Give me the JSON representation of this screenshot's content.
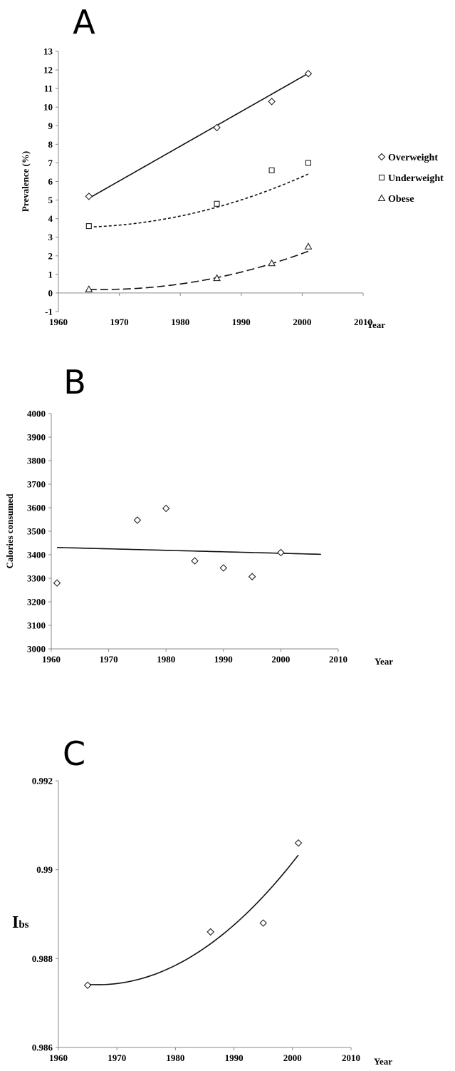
{
  "chart_data": [
    {
      "panel": "A",
      "type": "scatter",
      "title": "",
      "xlabel": "Year",
      "ylabel": "Prevalence (%)",
      "xlim": [
        1960,
        2010
      ],
      "ylim": [
        -1,
        13
      ],
      "xticks": [
        1960,
        1970,
        1980,
        1990,
        2000,
        2010
      ],
      "yticks": [
        -1,
        0,
        1,
        2,
        3,
        4,
        5,
        6,
        7,
        8,
        9,
        10,
        11,
        12,
        13
      ],
      "legend": "right",
      "series": [
        {
          "name": "Overweight",
          "marker": "diamond",
          "points": [
            [
              1965,
              5.2
            ],
            [
              1986,
              8.9
            ],
            [
              1995,
              10.3
            ],
            [
              2001,
              11.8
            ]
          ],
          "fit": {
            "style": "solid",
            "from": 1965,
            "to": 2001,
            "coef": [
              -361.71,
              0.18667,
              0
            ]
          }
        },
        {
          "name": "Underweight",
          "marker": "square",
          "points": [
            [
              1965,
              3.6
            ],
            [
              1986,
              4.8
            ],
            [
              1995,
              6.6
            ],
            [
              2001,
              7.0
            ]
          ],
          "fit": {
            "style": "short-dash",
            "from": 1965,
            "to": 2001,
            "coef": [
              3.55,
              0.0108,
              0.0019
            ]
          }
        },
        {
          "name": "Obese",
          "marker": "triangle",
          "points": [
            [
              1965,
              0.2
            ],
            [
              1986,
              0.8
            ],
            [
              1995,
              1.6
            ],
            [
              2001,
              2.5
            ]
          ],
          "fit": {
            "style": "long-dash",
            "from": 1965,
            "to": 2001,
            "coef": [
              0.2,
              -0.008,
              0.0018
            ]
          }
        }
      ]
    },
    {
      "panel": "B",
      "type": "scatter",
      "title": "",
      "xlabel": "Year",
      "ylabel": "Calories consumed",
      "xlim": [
        1960,
        2010
      ],
      "ylim": [
        3000,
        4000
      ],
      "xticks": [
        1960,
        1970,
        1980,
        1990,
        2000,
        2010
      ],
      "yticks": [
        3000,
        3100,
        3200,
        3300,
        3400,
        3500,
        3600,
        3700,
        3800,
        3900,
        4000
      ],
      "series": [
        {
          "name": "",
          "marker": "diamond",
          "points": [
            [
              1961,
              3280
            ],
            [
              1975,
              3547
            ],
            [
              1980,
              3597
            ],
            [
              1985,
              3374
            ],
            [
              1990,
              3344
            ],
            [
              1995,
              3307
            ],
            [
              2000,
              3409
            ]
          ],
          "fit": {
            "style": "solid",
            "from": 1961,
            "to": 2007,
            "coef": [
              4666.3,
              -0.63,
              0
            ]
          }
        }
      ]
    },
    {
      "panel": "C",
      "type": "scatter",
      "title": "",
      "xlabel": "Year",
      "ylabel": "Ibs",
      "ylabel_main": "I",
      "ylabel_sub": "bs",
      "xlim": [
        1960,
        2010
      ],
      "ylim": [
        0.986,
        0.992
      ],
      "xticks": [
        1960,
        1970,
        1980,
        1990,
        2000,
        2010
      ],
      "yticks": [
        0.986,
        0.988,
        0.99,
        0.992
      ],
      "ytick_labels": [
        "0.986",
        "0.988",
        "0.99",
        "0.992"
      ],
      "series": [
        {
          "name": "",
          "marker": "diamond",
          "points": [
            [
              1965,
              0.9874
            ],
            [
              1986,
              0.9886
            ],
            [
              1995,
              0.9888
            ],
            [
              2001,
              0.9906
            ]
          ],
          "fit": {
            "style": "solid",
            "from": 1965,
            "to": 2001,
            "coef": [
              0.98742,
              -8.8e-06,
              2.49e-06
            ]
          }
        }
      ]
    }
  ]
}
